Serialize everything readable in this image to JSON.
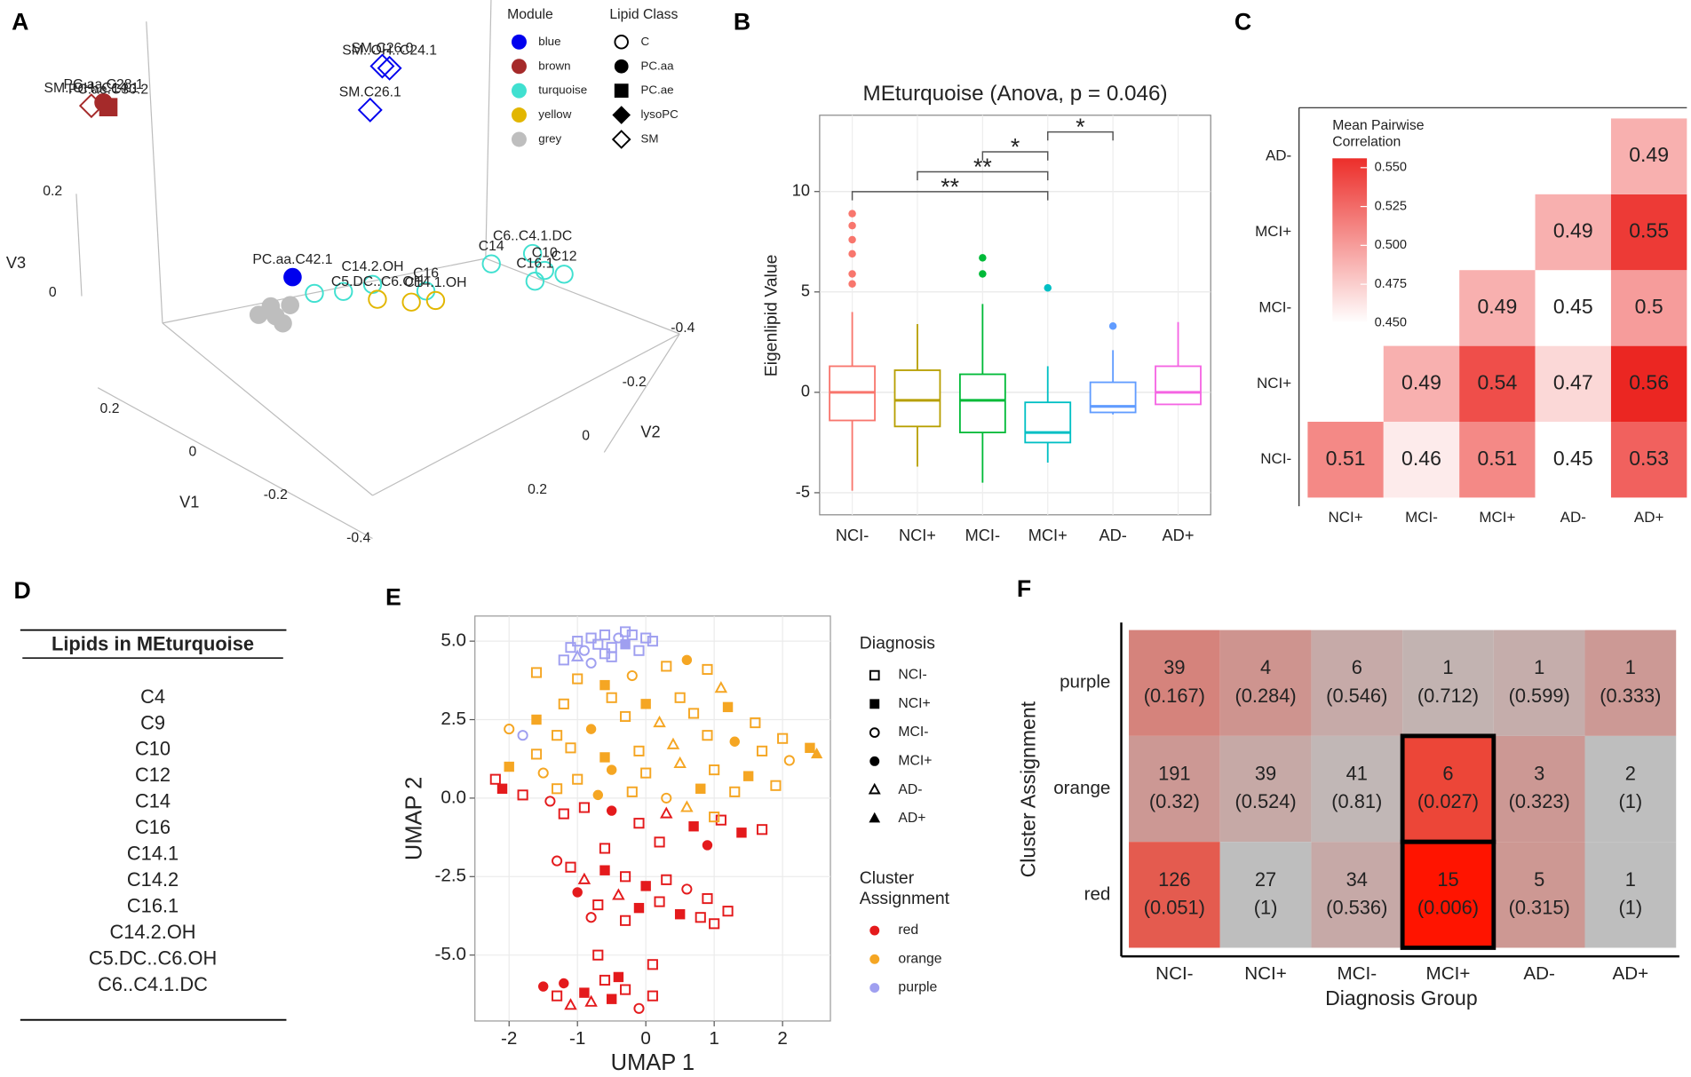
{
  "chart_data": [
    {
      "type": "scatter3d",
      "panel": "A",
      "x_label": "V1",
      "y_label": "V2",
      "z_label": "V3",
      "xticks": [
        0.2,
        0,
        -0.2,
        -0.4
      ],
      "yticks": [
        -0.4,
        -0.2,
        0,
        0.2
      ],
      "zticks": [
        0.2,
        0
      ],
      "module_title": "Module",
      "modules": [
        {
          "name": "blue",
          "color": "#0000ee"
        },
        {
          "name": "brown",
          "color": "#a52a2a"
        },
        {
          "name": "turquoise",
          "color": "#40e0d0"
        },
        {
          "name": "yellow",
          "color": "#e2b600"
        },
        {
          "name": "grey",
          "color": "#bebebe"
        }
      ],
      "class_title": "Lipid Class",
      "classes": [
        "C",
        "PC.aa",
        "PC.ae",
        "lysoPC",
        "SM"
      ],
      "class_markers": [
        "circle-open",
        "circle",
        "square",
        "diamond",
        "diamond-open"
      ],
      "points": [
        {
          "label": "SM..OH..C14.1",
          "module": "brown",
          "class": "SM",
          "v1": 0,
          "v2": 0.96,
          "v3": 0.94
        },
        {
          "label": "PC.aa.C28.1",
          "module": "brown",
          "class": "PC.aa",
          "v1": 0,
          "v2": 0.91,
          "v3": 0.92
        },
        {
          "label": "PC.ae.C30.2",
          "module": "brown",
          "class": "PC.ae",
          "v1": 0,
          "v2": 0.89,
          "v3": 0.9
        },
        {
          "label": "SM.C26.0",
          "module": "blue",
          "class": "SM",
          "v1": 0,
          "v2": -0.24,
          "v3": 0.38
        },
        {
          "label": "SM..OH..C24.1",
          "module": "blue",
          "class": "SM",
          "v1": 0,
          "v2": -0.27,
          "v3": 0.36
        },
        {
          "label": "SM.C26.1",
          "module": "blue",
          "class": "SM",
          "v1": 0,
          "v2": -0.19,
          "v3": 0.32
        },
        {
          "label": "PC.aa.C42.1",
          "module": "blue",
          "class": "PC.aa",
          "v1": 0,
          "v2": 0.13,
          "v3": 0.16
        },
        {
          "label": "C16",
          "module": "turquoise",
          "class": "C",
          "v1": 0,
          "v2": -0.42,
          "v3": -0.16
        },
        {
          "label": "C14.2.OH",
          "module": "turquoise",
          "class": "C",
          "v1": 0,
          "v2": -0.2,
          "v3": -0.03
        },
        {
          "label": "C14",
          "module": "turquoise",
          "class": "C",
          "v1": 0,
          "v2": -0.69,
          "v3": -0.25
        },
        {
          "label": "C6..C4.1.DC",
          "module": "turquoise",
          "class": "C",
          "v1": 0,
          "v2": -0.86,
          "v3": -0.32
        },
        {
          "label": "C10",
          "module": "turquoise",
          "class": "C",
          "v1": 0,
          "v2": -0.91,
          "v3": -0.38
        },
        {
          "label": "C12",
          "module": "turquoise",
          "class": "C",
          "v1": 0,
          "v2": -0.99,
          "v3": -0.43
        },
        {
          "label": "C16.1",
          "module": "turquoise",
          "class": "C",
          "v1": 0,
          "v2": -0.87,
          "v3": -0.38
        },
        {
          "module": "turquoise",
          "class": "C",
          "v1": 0,
          "v2": 0.04,
          "v3": 0.08
        },
        {
          "module": "turquoise",
          "class": "C",
          "v1": 0,
          "v2": -0.08,
          "v3": 0.02
        },
        {
          "label": "C14.1.OH",
          "module": "yellow",
          "class": "C",
          "v1": 0,
          "v2": -0.46,
          "v3": -0.2
        },
        {
          "label": "C5.DC..C6.OH",
          "module": "yellow",
          "class": "C",
          "v1": 0,
          "v2": -0.22,
          "v3": -0.07
        },
        {
          "module": "yellow",
          "class": "C",
          "v1": 0,
          "v2": -0.36,
          "v3": -0.15
        },
        {
          "module": "grey",
          "class": "PC.aa",
          "v1": 0,
          "v2": 0.2,
          "v3": 0.12
        },
        {
          "module": "grey",
          "class": "PC.aa",
          "v1": 0,
          "v2": 0.17,
          "v3": 0.09
        },
        {
          "module": "grey",
          "class": "PC.aa",
          "v1": 0,
          "v2": 0.22,
          "v3": 0.15
        },
        {
          "module": "grey",
          "class": "PC.aa",
          "v1": 0,
          "v2": 0.27,
          "v3": 0.16
        },
        {
          "module": "grey",
          "class": "PC.aa",
          "v1": 0,
          "v2": 0.14,
          "v3": 0.11
        }
      ]
    },
    {
      "type": "box",
      "panel": "B",
      "title": "MEturquoise (Anova,  p = 0.046)",
      "y_label": "Eigenlipid Value",
      "categories": [
        "NCI-",
        "NCI+",
        "MCI-",
        "MCI+",
        "AD-",
        "AD+"
      ],
      "colors": [
        "#f8766d",
        "#b79f00",
        "#00ba38",
        "#00bfc4",
        "#619cff",
        "#f564e3"
      ],
      "ylim": [
        -6.1,
        13.8
      ],
      "yticks": [
        -5,
        0,
        5,
        10
      ],
      "grid": true,
      "boxes": [
        {
          "low": -4.9,
          "q1": -1.4,
          "median": 0,
          "q3": 1.3,
          "high": 4.0,
          "outliers": [
            8.9,
            8.3,
            7.6,
            6.9,
            5.9,
            5.4
          ]
        },
        {
          "low": -3.7,
          "q1": -1.7,
          "median": -0.4,
          "q3": 1.1,
          "high": 3.4,
          "outliers": []
        },
        {
          "low": -4.5,
          "q1": -2.0,
          "median": -0.4,
          "q3": 0.9,
          "high": 4.4,
          "outliers": [
            6.7,
            5.9
          ]
        },
        {
          "low": -3.5,
          "q1": -2.5,
          "median": -2.0,
          "q3": -0.5,
          "high": 1.3,
          "outliers": [
            5.2
          ]
        },
        {
          "low": -1.1,
          "q1": -1.0,
          "median": -0.7,
          "q3": 0.5,
          "high": 2.1,
          "outliers": [
            3.3
          ]
        },
        {
          "low": -0.6,
          "q1": -0.6,
          "median": 0,
          "q3": 1.3,
          "high": 3.5,
          "outliers": []
        }
      ],
      "comparisons": [
        {
          "groups": [
            "NCI-",
            "MCI+"
          ],
          "label": "**"
        },
        {
          "groups": [
            "NCI+",
            "MCI+"
          ],
          "label": "**"
        },
        {
          "groups": [
            "MCI-",
            "MCI+"
          ],
          "label": "*"
        },
        {
          "groups": [
            "MCI+",
            "AD-"
          ],
          "label": "*"
        }
      ]
    },
    {
      "type": "heatmap",
      "panel": "C",
      "x_categories": [
        "NCI+",
        "MCI-",
        "MCI+",
        "AD-",
        "AD+"
      ],
      "y_categories": [
        "NCI-",
        "NCI+",
        "MCI-",
        "MCI+",
        "AD-"
      ],
      "values": [
        [
          0.51,
          0.46,
          0.51,
          0.45,
          0.53
        ],
        [
          null,
          0.49,
          0.54,
          0.47,
          0.56
        ],
        [
          null,
          null,
          0.49,
          0.45,
          0.5
        ],
        [
          null,
          null,
          null,
          0.49,
          0.55
        ],
        [
          null,
          null,
          null,
          null,
          0.49
        ]
      ],
      "colorbar_title": [
        "Mean Pairwise",
        "Correlation"
      ],
      "clim": [
        0.45,
        0.556
      ],
      "low_color": "#ffffff",
      "high_color": "#ec2e2a",
      "cticks": [
        {
          "value": 0.45,
          "label": "0.450"
        },
        {
          "value": 0.475,
          "label": "0.475"
        },
        {
          "value": 0.5,
          "label": "0.500"
        },
        {
          "value": 0.525,
          "label": "0.525"
        },
        {
          "value": 0.55,
          "label": "0.550"
        }
      ]
    },
    {
      "type": "table",
      "panel": "D",
      "title": "Lipids in MEturquoise",
      "items": [
        "C4",
        "C9",
        "C10",
        "C12",
        "C14",
        "C16",
        "C14.1",
        "C14.2",
        "C16.1",
        "C14.2.OH",
        "C5.DC..C6.OH",
        "C6..C4.1.DC"
      ]
    },
    {
      "type": "scatter",
      "panel": "E",
      "x_label": "UMAP 1",
      "y_label": "UMAP 2",
      "xlim": [
        -2.5,
        2.7
      ],
      "ylim": [
        -7.1,
        5.8
      ],
      "xticks": [
        -2,
        -1,
        0,
        1,
        2
      ],
      "yticks": [
        {
          "value": -5,
          "label": "-5.0"
        },
        -2.5,
        {
          "value": 0,
          "label": "0.0"
        },
        2.5,
        {
          "value": 5,
          "label": "5.0"
        }
      ],
      "grid": true,
      "diagnosis_title": "Diagnosis",
      "diagnoses": [
        "NCI-",
        "NCI+",
        "MCI-",
        "MCI+",
        "AD-",
        "AD+"
      ],
      "markers": [
        "square-open",
        "square",
        "circle-open",
        "circle",
        "triangle-open",
        "triangle"
      ],
      "cluster_title": [
        "Cluster",
        "Assignment"
      ],
      "series": [
        {
          "name": "red",
          "color": "#e41a1c",
          "x": [
            -2.2,
            -2.1,
            -1.8,
            -1.4,
            -1.2,
            -0.9,
            -0.5,
            -0.1,
            0.3,
            0.7,
            1.1,
            1.4,
            1.7,
            -1.3,
            -0.6,
            0.2,
            0.9,
            -1.1,
            -0.9,
            -0.6,
            -0.3,
            0.0,
            0.3,
            0.6,
            0.9,
            1.2,
            -1.0,
            -0.7,
            -0.4,
            -0.1,
            0.2,
            0.5,
            0.8,
            -0.8,
            -0.3,
            1.0,
            -1.5,
            -1.3,
            -1.1,
            -0.9,
            -0.7,
            -0.5,
            -0.3,
            -0.1,
            0.1,
            -0.6,
            -1.2,
            0.1,
            -0.8,
            -0.4
          ],
          "y": [
            0.6,
            0.3,
            0.1,
            -0.1,
            -0.5,
            -0.3,
            -0.4,
            -0.8,
            -0.5,
            -0.9,
            -0.7,
            -1.1,
            -1.0,
            -2.0,
            -1.6,
            -1.4,
            -1.5,
            -2.2,
            -2.6,
            -2.3,
            -2.5,
            -2.8,
            -2.6,
            -2.9,
            -3.2,
            -3.6,
            -3.0,
            -3.4,
            -3.1,
            -3.5,
            -3.3,
            -3.7,
            -3.8,
            -3.8,
            -3.9,
            -4.0,
            -6.0,
            -6.3,
            -6.6,
            -6.2,
            -5.0,
            -6.4,
            -6.1,
            -6.7,
            -6.3,
            -5.8,
            -5.9,
            -5.3,
            -6.5,
            -5.7
          ],
          "diagnosis": [
            "NCI-",
            "NCI+",
            "NCI-",
            "MCI-",
            "NCI-",
            "NCI-",
            "MCI+",
            "NCI-",
            "AD-",
            "NCI+",
            "NCI-",
            "NCI+",
            "NCI-",
            "MCI-",
            "NCI-",
            "NCI-",
            "MCI+",
            "NCI-",
            "AD-",
            "NCI+",
            "NCI-",
            "NCI+",
            "NCI-",
            "MCI-",
            "NCI-",
            "NCI-",
            "MCI+",
            "NCI-",
            "AD-",
            "NCI+",
            "NCI-",
            "NCI+",
            "NCI-",
            "MCI-",
            "NCI-",
            "NCI-",
            "MCI+",
            "NCI-",
            "AD-",
            "NCI+",
            "NCI-",
            "NCI+",
            "NCI-",
            "MCI-",
            "NCI-",
            "NCI-",
            "MCI+",
            "NCI-",
            "AD-",
            "NCI+"
          ]
        },
        {
          "name": "orange",
          "color": "#f5a623",
          "x": [
            -1.6,
            -1.0,
            -0.6,
            -0.2,
            0.3,
            0.6,
            0.9,
            1.1,
            0.5,
            0.0,
            -0.5,
            -1.2,
            -1.6,
            -2.0,
            -1.3,
            -0.8,
            -0.3,
            0.2,
            0.7,
            1.2,
            1.6,
            2.0,
            2.4,
            2.1,
            1.7,
            1.3,
            0.9,
            0.4,
            -0.1,
            -0.6,
            -1.1,
            -1.6,
            -2.0,
            -1.5,
            -1.0,
            -0.5,
            0.0,
            0.5,
            1.0,
            1.5,
            1.9,
            1.3,
            0.8,
            0.3,
            -0.2,
            -0.7,
            -1.3,
            0.6,
            1.0,
            2.5
          ],
          "y": [
            4.0,
            3.8,
            3.6,
            3.9,
            4.2,
            4.4,
            4.1,
            3.5,
            3.2,
            3.0,
            3.2,
            3.0,
            2.5,
            2.2,
            2.0,
            2.2,
            2.6,
            2.4,
            2.7,
            2.9,
            2.4,
            1.9,
            1.6,
            1.2,
            1.5,
            1.8,
            2.0,
            1.7,
            1.5,
            1.3,
            1.6,
            1.4,
            1.0,
            0.8,
            0.6,
            0.9,
            0.8,
            1.1,
            0.9,
            0.7,
            0.4,
            0.2,
            0.3,
            0.0,
            0.2,
            0.1,
            0.3,
            -0.3,
            -0.6,
            1.4
          ],
          "diagnosis": [
            "NCI-",
            "NCI-",
            "NCI+",
            "MCI-",
            "NCI-",
            "MCI+",
            "NCI-",
            "AD-",
            "NCI-",
            "NCI+",
            "NCI-",
            "NCI-",
            "NCI+",
            "MCI-",
            "NCI-",
            "MCI+",
            "NCI-",
            "AD-",
            "NCI-",
            "NCI+",
            "NCI-",
            "NCI-",
            "NCI+",
            "MCI-",
            "NCI-",
            "MCI+",
            "NCI-",
            "AD-",
            "NCI-",
            "NCI+",
            "NCI-",
            "NCI-",
            "NCI+",
            "MCI-",
            "NCI-",
            "MCI+",
            "NCI-",
            "AD-",
            "NCI-",
            "NCI+",
            "NCI-",
            "NCI-",
            "NCI+",
            "MCI-",
            "NCI-",
            "MCI+",
            "NCI-",
            "AD-",
            "NCI-",
            "AD+"
          ]
        },
        {
          "name": "purple",
          "color": "#9f9ff0",
          "x": [
            -1.0,
            -0.8,
            -0.6,
            -0.4,
            -0.2,
            0.0,
            -1.1,
            -0.9,
            -0.7,
            -0.5,
            -0.3,
            -0.1,
            -1.2,
            -0.8,
            -0.5,
            -1.8,
            0.1,
            -0.6,
            -0.3,
            -1.0
          ],
          "y": [
            5.0,
            5.1,
            5.2,
            5.1,
            5.2,
            5.1,
            4.8,
            4.7,
            4.9,
            4.8,
            4.9,
            4.7,
            4.4,
            4.3,
            4.5,
            2.0,
            5.0,
            4.6,
            5.3,
            4.5
          ],
          "diagnosis": [
            "NCI-",
            "NCI-",
            "NCI-",
            "MCI-",
            "NCI-",
            "NCI-",
            "NCI-",
            "MCI-",
            "NCI-",
            "NCI-",
            "NCI+",
            "NCI-",
            "NCI-",
            "MCI-",
            "NCI-",
            "MCI-",
            "NCI-",
            "NCI-",
            "NCI-",
            "AD-"
          ]
        }
      ]
    },
    {
      "type": "count_heatmap",
      "panel": "F",
      "x_label": "Diagnosis Group",
      "y_label": "Cluster Assignment",
      "columns": [
        "NCI-",
        "NCI+",
        "MCI-",
        "MCI+",
        "AD-",
        "AD+"
      ],
      "rows": [
        "purple",
        "orange",
        "red"
      ],
      "counts": [
        [
          39,
          4,
          6,
          1,
          1,
          1
        ],
        [
          191,
          39,
          41,
          6,
          3,
          2
        ],
        [
          126,
          27,
          34,
          15,
          5,
          1
        ]
      ],
      "p_values": [
        [
          0.167,
          0.284,
          0.546,
          0.712,
          0.599,
          0.333
        ],
        [
          0.32,
          0.524,
          0.81,
          0.027,
          0.323,
          1
        ],
        [
          0.051,
          1,
          0.536,
          0.006,
          0.315,
          1
        ]
      ],
      "p_labels": [
        [
          "(0.167)",
          "(0.284)",
          "(0.546)",
          "(0.712)",
          "(0.599)",
          "(0.333)"
        ],
        [
          "(0.32)",
          "(0.524)",
          "(0.81)",
          "(0.027)",
          "(0.323)",
          "(1)"
        ],
        [
          "(0.051)",
          "(1)",
          "(0.536)",
          "(0.006)",
          "(0.315)",
          "(1)"
        ]
      ],
      "low_color": "#bebebe",
      "high_color": "#ff1400",
      "highlight": [
        {
          "row": "orange",
          "column": "MCI+"
        },
        {
          "row": "red",
          "column": "MCI+"
        }
      ]
    }
  ]
}
